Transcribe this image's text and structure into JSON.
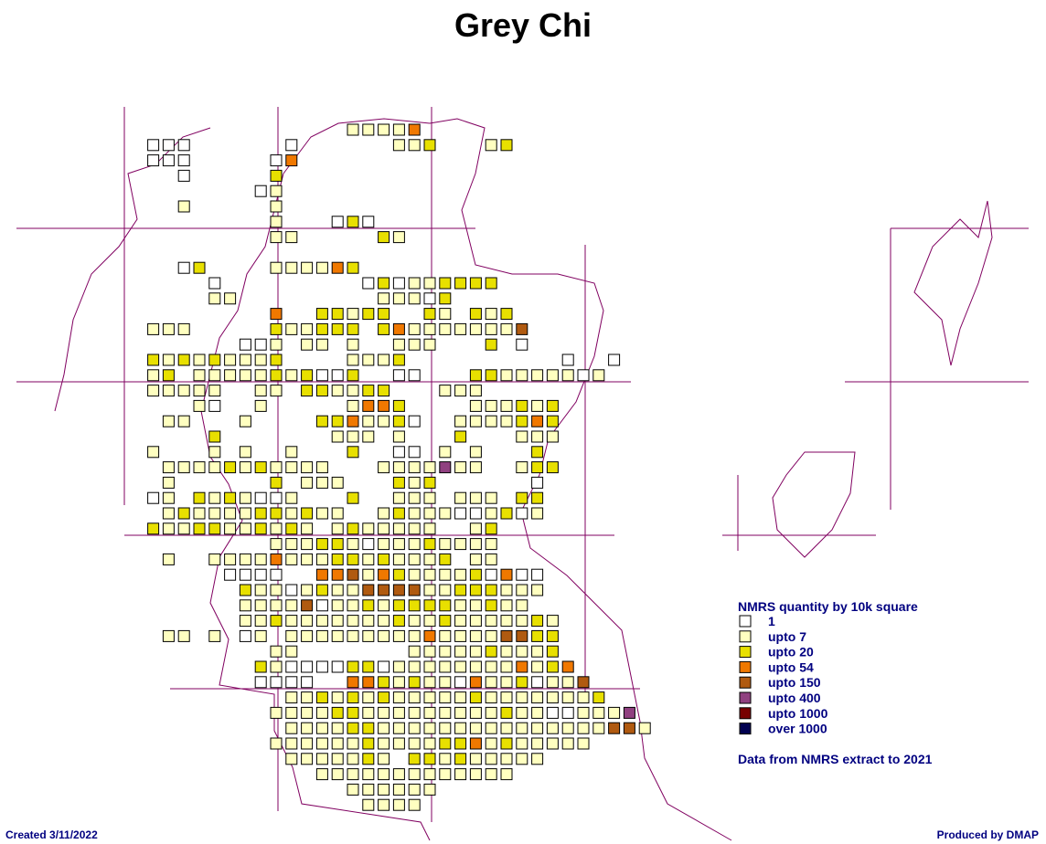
{
  "header": {
    "title": "Grey Chi"
  },
  "legend": {
    "title": "NMRS quantity by 10k square",
    "items": [
      {
        "label": "1",
        "color": "#ffffff"
      },
      {
        "label": "upto 7",
        "color": "#ffffc0"
      },
      {
        "label": "upto 20",
        "color": "#e8e000"
      },
      {
        "label": "upto 54",
        "color": "#f07800"
      },
      {
        "label": "upto 150",
        "color": "#b05a10"
      },
      {
        "label": "upto 400",
        "color": "#904080"
      },
      {
        "label": "upto 1000",
        "color": "#780000"
      },
      {
        "label": "over 1000",
        "color": "#000050"
      }
    ],
    "note": "Data from NMRS extract to 2021"
  },
  "footer": {
    "created": "Created 3/11/2022",
    "produced": "Produced by DMAP"
  }
}
